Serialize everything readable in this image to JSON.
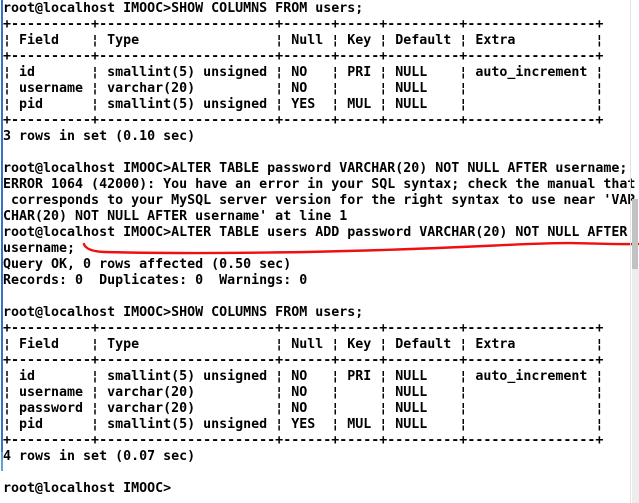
{
  "colors": {
    "background": "#ffffff",
    "text": "#000000",
    "left_border": "#3b6fc9",
    "left_border_lower": "#669fd4",
    "scrollbar_divider": "#e3e3e3",
    "scrollbar_thumb": "#c2c2c2",
    "scrollbar_track_lower": "#ededed",
    "annotation_red": "#ef0f0f"
  },
  "terminal": {
    "prompt": "root@localhost IMOOC>",
    "lines": [
      "root@localhost IMOOC>SHOW COLUMNS FROM users;",
      "+----------+----------------------+------+-----+---------+----------------+",
      "¦ Field    ¦ Type                 ¦ Null ¦ Key ¦ Default ¦ Extra          ¦",
      "+----------+----------------------+------+-----+---------+----------------+",
      "¦ id       ¦ smallint(5) unsigned ¦ NO   ¦ PRI ¦ NULL    ¦ auto_increment ¦",
      "¦ username ¦ varchar(20)          ¦ NO   ¦     ¦ NULL    ¦                ¦",
      "¦ pid      ¦ smallint(5) unsigned ¦ YES  ¦ MUL ¦ NULL    ¦                ¦",
      "+----------+----------------------+------+-----+---------+----------------+",
      "3 rows in set (0.10 sec)",
      "",
      "root@localhost IMOOC>ALTER TABLE password VARCHAR(20) NOT NULL AFTER username;",
      "ERROR 1064 (42000): You have an error in your SQL syntax; check the manual that",
      " corresponds to your MySQL server version for the right syntax to use near 'VAR",
      "CHAR(20) NOT NULL AFTER username' at line 1",
      "root@localhost IMOOC>ALTER TABLE users ADD password VARCHAR(20) NOT NULL AFTER",
      "username;",
      "Query OK, 0 rows affected (0.50 sec)",
      "Records: 0  Duplicates: 0  Warnings: 0",
      "",
      "root@localhost IMOOC>SHOW COLUMNS FROM users;",
      "+----------+----------------------+------+-----+---------+----------------+",
      "¦ Field    ¦ Type                 ¦ Null ¦ Key ¦ Default ¦ Extra          ¦",
      "+----------+----------------------+------+-----+---------+----------------+",
      "¦ id       ¦ smallint(5) unsigned ¦ NO   ¦ PRI ¦ NULL    ¦ auto_increment ¦",
      "¦ username ¦ varchar(20)          ¦ NO   ¦     ¦ NULL    ¦                ¦",
      "¦ password ¦ varchar(20)          ¦ NO   ¦     ¦ NULL    ¦                ¦",
      "¦ pid      ¦ smallint(5) unsigned ¦ YES  ¦ MUL ¦ NULL    ¦                ¦",
      "+----------+----------------------+------+-----+---------+----------------+",
      "4 rows in set (0.07 sec)",
      "",
      "root@localhost IMOOC>"
    ]
  },
  "commands": [
    {
      "prompt": "root@localhost IMOOC>",
      "sql": "SHOW COLUMNS FROM users;"
    },
    {
      "prompt": "root@localhost IMOOC>",
      "sql": "ALTER TABLE password VARCHAR(20) NOT NULL AFTER username;",
      "result": "ERROR 1064 (42000): You have an error in your SQL syntax; check the manual that corresponds to your MySQL server version for the right syntax to use near 'VARCHAR(20) NOT NULL AFTER username' at line 1"
    },
    {
      "prompt": "root@localhost IMOOC>",
      "sql": "ALTER TABLE users ADD password VARCHAR(20) NOT NULL AFTER username;",
      "result": "Query OK, 0 rows affected (0.50 sec)",
      "result_detail": "Records: 0  Duplicates: 0  Warnings: 0",
      "annotated": "red hand-drawn underline"
    },
    {
      "prompt": "root@localhost IMOOC>",
      "sql": "SHOW COLUMNS FROM users;"
    }
  ],
  "result_tables": [
    {
      "headers": [
        "Field",
        "Type",
        "Null",
        "Key",
        "Default",
        "Extra"
      ],
      "rows": [
        [
          "id",
          "smallint(5) unsigned",
          "NO",
          "PRI",
          "NULL",
          "auto_increment"
        ],
        [
          "username",
          "varchar(20)",
          "NO",
          "",
          "NULL",
          ""
        ],
        [
          "pid",
          "smallint(5) unsigned",
          "YES",
          "MUL",
          "NULL",
          ""
        ]
      ],
      "footer": "3 rows in set (0.10 sec)"
    },
    {
      "headers": [
        "Field",
        "Type",
        "Null",
        "Key",
        "Default",
        "Extra"
      ],
      "rows": [
        [
          "id",
          "smallint(5) unsigned",
          "NO",
          "PRI",
          "NULL",
          "auto_increment"
        ],
        [
          "username",
          "varchar(20)",
          "NO",
          "",
          "NULL",
          ""
        ],
        [
          "password",
          "varchar(20)",
          "NO",
          "",
          "NULL",
          ""
        ],
        [
          "pid",
          "smallint(5) unsigned",
          "YES",
          "MUL",
          "NULL",
          ""
        ]
      ],
      "footer": "4 rows in set (0.07 sec)"
    }
  ],
  "annotation": {
    "type": "freehand-underline",
    "target_text": "username;",
    "color": "#ef0f0f"
  }
}
